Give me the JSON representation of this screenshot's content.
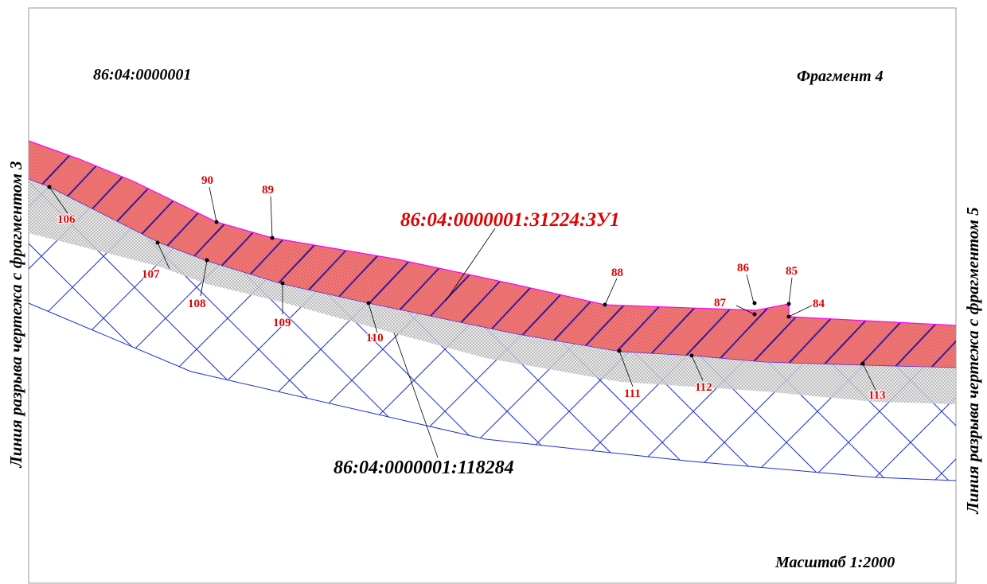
{
  "quarter_label": "86:04:0000001",
  "fragment_label": "Фрагмент 4",
  "scale_label": "Масштаб 1:2000",
  "left_break_label": "Линия разрыва чертежа с фрагментом 3",
  "right_break_label": "Линия разрыва чертежа с фрагментом 5",
  "new_parcel_label": "86:04:0000001:31224:ЗУ1",
  "existing_parcel_label": "86:04:0000001:118284",
  "points": {
    "p84": "84",
    "p85": "85",
    "p86": "86",
    "p87": "87",
    "p88": "88",
    "p89": "89",
    "p90": "90",
    "p106": "106",
    "p107": "107",
    "p108": "108",
    "p109": "109",
    "p110": "110",
    "p111": "111",
    "p112": "112",
    "p113": "113"
  },
  "colors": {
    "new_parcel_fill": "#f07878",
    "new_parcel_hatch": "#3a1a9a",
    "boundary": "#ff00ff",
    "existing_parcel_grid": "#1a2fd6",
    "dotted_zone": "#dcdcdc",
    "point_label": "#e00000",
    "text": "#000000"
  }
}
